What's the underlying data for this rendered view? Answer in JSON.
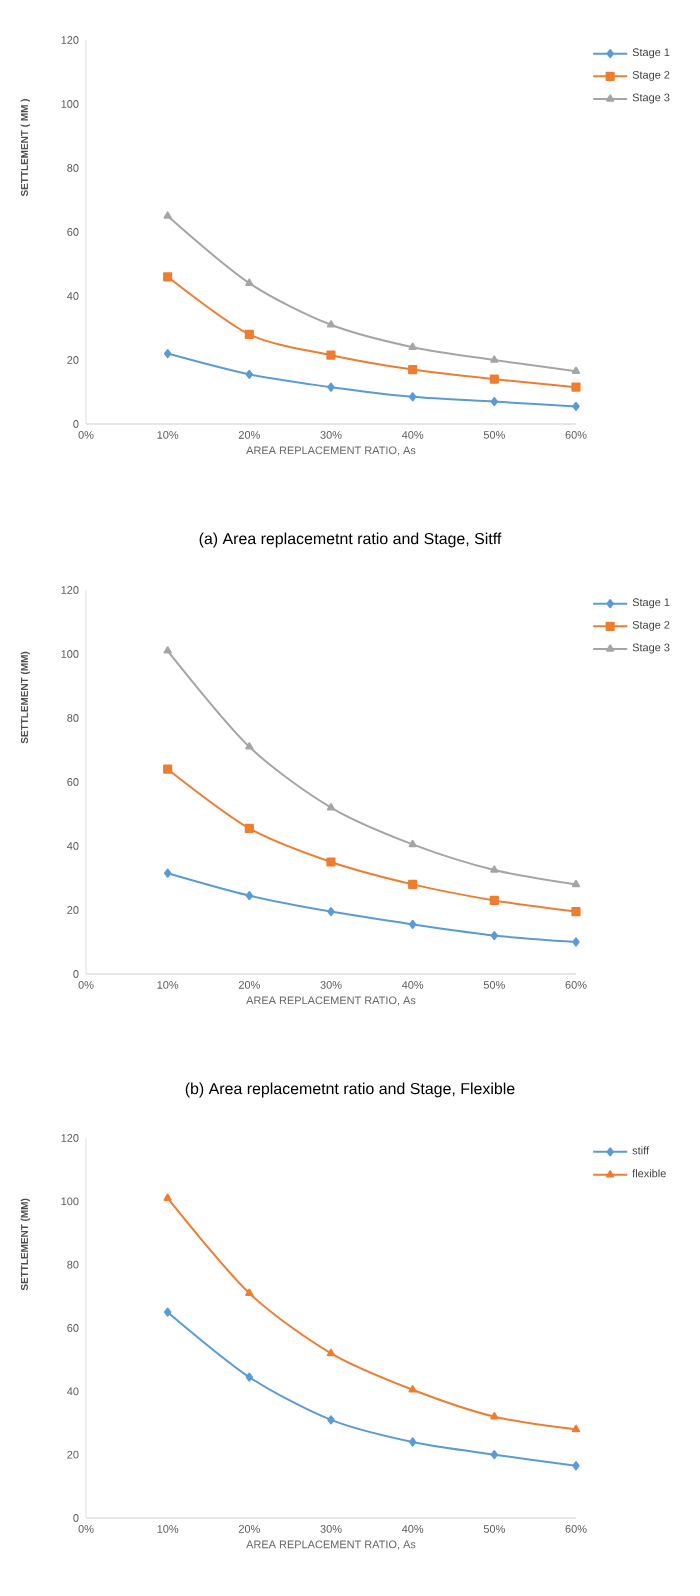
{
  "chart_data": [
    {
      "type": "line",
      "xlabel": "AREA REPLACEMENT RATIO, As",
      "ylabel": "SETTLEMENT ( MM )",
      "x": [
        10,
        20,
        30,
        40,
        50,
        60
      ],
      "xlim": [
        0,
        60
      ],
      "xticks": [
        {
          "value": 0,
          "label": "0%"
        },
        {
          "value": 10,
          "label": "10%"
        },
        {
          "value": 20,
          "label": "20%"
        },
        {
          "value": 30,
          "label": "30%"
        },
        {
          "value": 40,
          "label": "40%"
        },
        {
          "value": 50,
          "label": "50%"
        },
        {
          "value": 60,
          "label": "60%"
        }
      ],
      "ylim": [
        0,
        120
      ],
      "yticks": [
        0,
        20,
        40,
        60,
        80,
        100,
        120
      ],
      "legend": "top right",
      "grid": false,
      "line_style": "solid",
      "series": [
        {
          "name": "Stage 1",
          "color": "#5b9bd5",
          "marker": "diamond",
          "values": [
            22,
            15.5,
            11.5,
            8.5,
            7,
            5.5
          ]
        },
        {
          "name": "Stage 2",
          "color": "#ed7d31",
          "marker": "square",
          "values": [
            46,
            28,
            21.5,
            17,
            14,
            11.5
          ]
        },
        {
          "name": "Stage 3",
          "color": "#a5a5a5",
          "marker": "triangle",
          "values": [
            65,
            44,
            31,
            24,
            20,
            16.5
          ]
        }
      ],
      "annotations": [
        "(a) Area replacemetnt ratio and Stage, Sitff"
      ]
    },
    {
      "type": "line",
      "xlabel": "AREA REPLACEMENT RATIO, As",
      "ylabel": "SETTLEMENT (MM)",
      "x": [
        10,
        20,
        30,
        40,
        50,
        60
      ],
      "xlim": [
        0,
        60
      ],
      "xticks": [
        {
          "value": 0,
          "label": "0%"
        },
        {
          "value": 10,
          "label": "10%"
        },
        {
          "value": 20,
          "label": "20%"
        },
        {
          "value": 30,
          "label": "30%"
        },
        {
          "value": 40,
          "label": "40%"
        },
        {
          "value": 50,
          "label": "50%"
        },
        {
          "value": 60,
          "label": "60%"
        }
      ],
      "ylim": [
        0,
        120
      ],
      "yticks": [
        0,
        20,
        40,
        60,
        80,
        100,
        120
      ],
      "legend": "top right",
      "grid": false,
      "line_style": "solid",
      "series": [
        {
          "name": "Stage 1",
          "color": "#5b9bd5",
          "marker": "diamond",
          "values": [
            31.5,
            24.5,
            19.5,
            15.5,
            12,
            10
          ]
        },
        {
          "name": "Stage 2",
          "color": "#ed7d31",
          "marker": "square",
          "values": [
            64,
            45.5,
            35,
            28,
            23,
            19.5
          ]
        },
        {
          "name": "Stage 3",
          "color": "#a5a5a5",
          "marker": "triangle",
          "values": [
            101,
            71,
            52,
            40.5,
            32.5,
            28
          ]
        }
      ],
      "annotations": [
        "(b) Area replacemetnt ratio and Stage, Flexible"
      ]
    },
    {
      "type": "line",
      "xlabel": "AREA REPLACEMENT RATIO, As",
      "ylabel": "SETTLEMENT (MM)",
      "x": [
        10,
        20,
        30,
        40,
        50,
        60
      ],
      "xlim": [
        0,
        60
      ],
      "xticks": [
        {
          "value": 0,
          "label": "0%"
        },
        {
          "value": 10,
          "label": "10%"
        },
        {
          "value": 20,
          "label": "20%"
        },
        {
          "value": 30,
          "label": "30%"
        },
        {
          "value": 40,
          "label": "40%"
        },
        {
          "value": 50,
          "label": "50%"
        },
        {
          "value": 60,
          "label": "60%"
        }
      ],
      "ylim": [
        0,
        120
      ],
      "yticks": [
        0,
        20,
        40,
        60,
        80,
        100,
        120
      ],
      "legend": "top right",
      "grid": false,
      "line_style": "solid",
      "series": [
        {
          "name": "stiff",
          "color": "#5b9bd5",
          "marker": "diamond",
          "values": [
            65,
            44.5,
            31,
            24,
            20,
            16.5
          ]
        },
        {
          "name": "flexible",
          "color": "#ed7d31",
          "marker": "triangle",
          "values": [
            101,
            71,
            52,
            40.5,
            32,
            28
          ]
        }
      ]
    }
  ]
}
